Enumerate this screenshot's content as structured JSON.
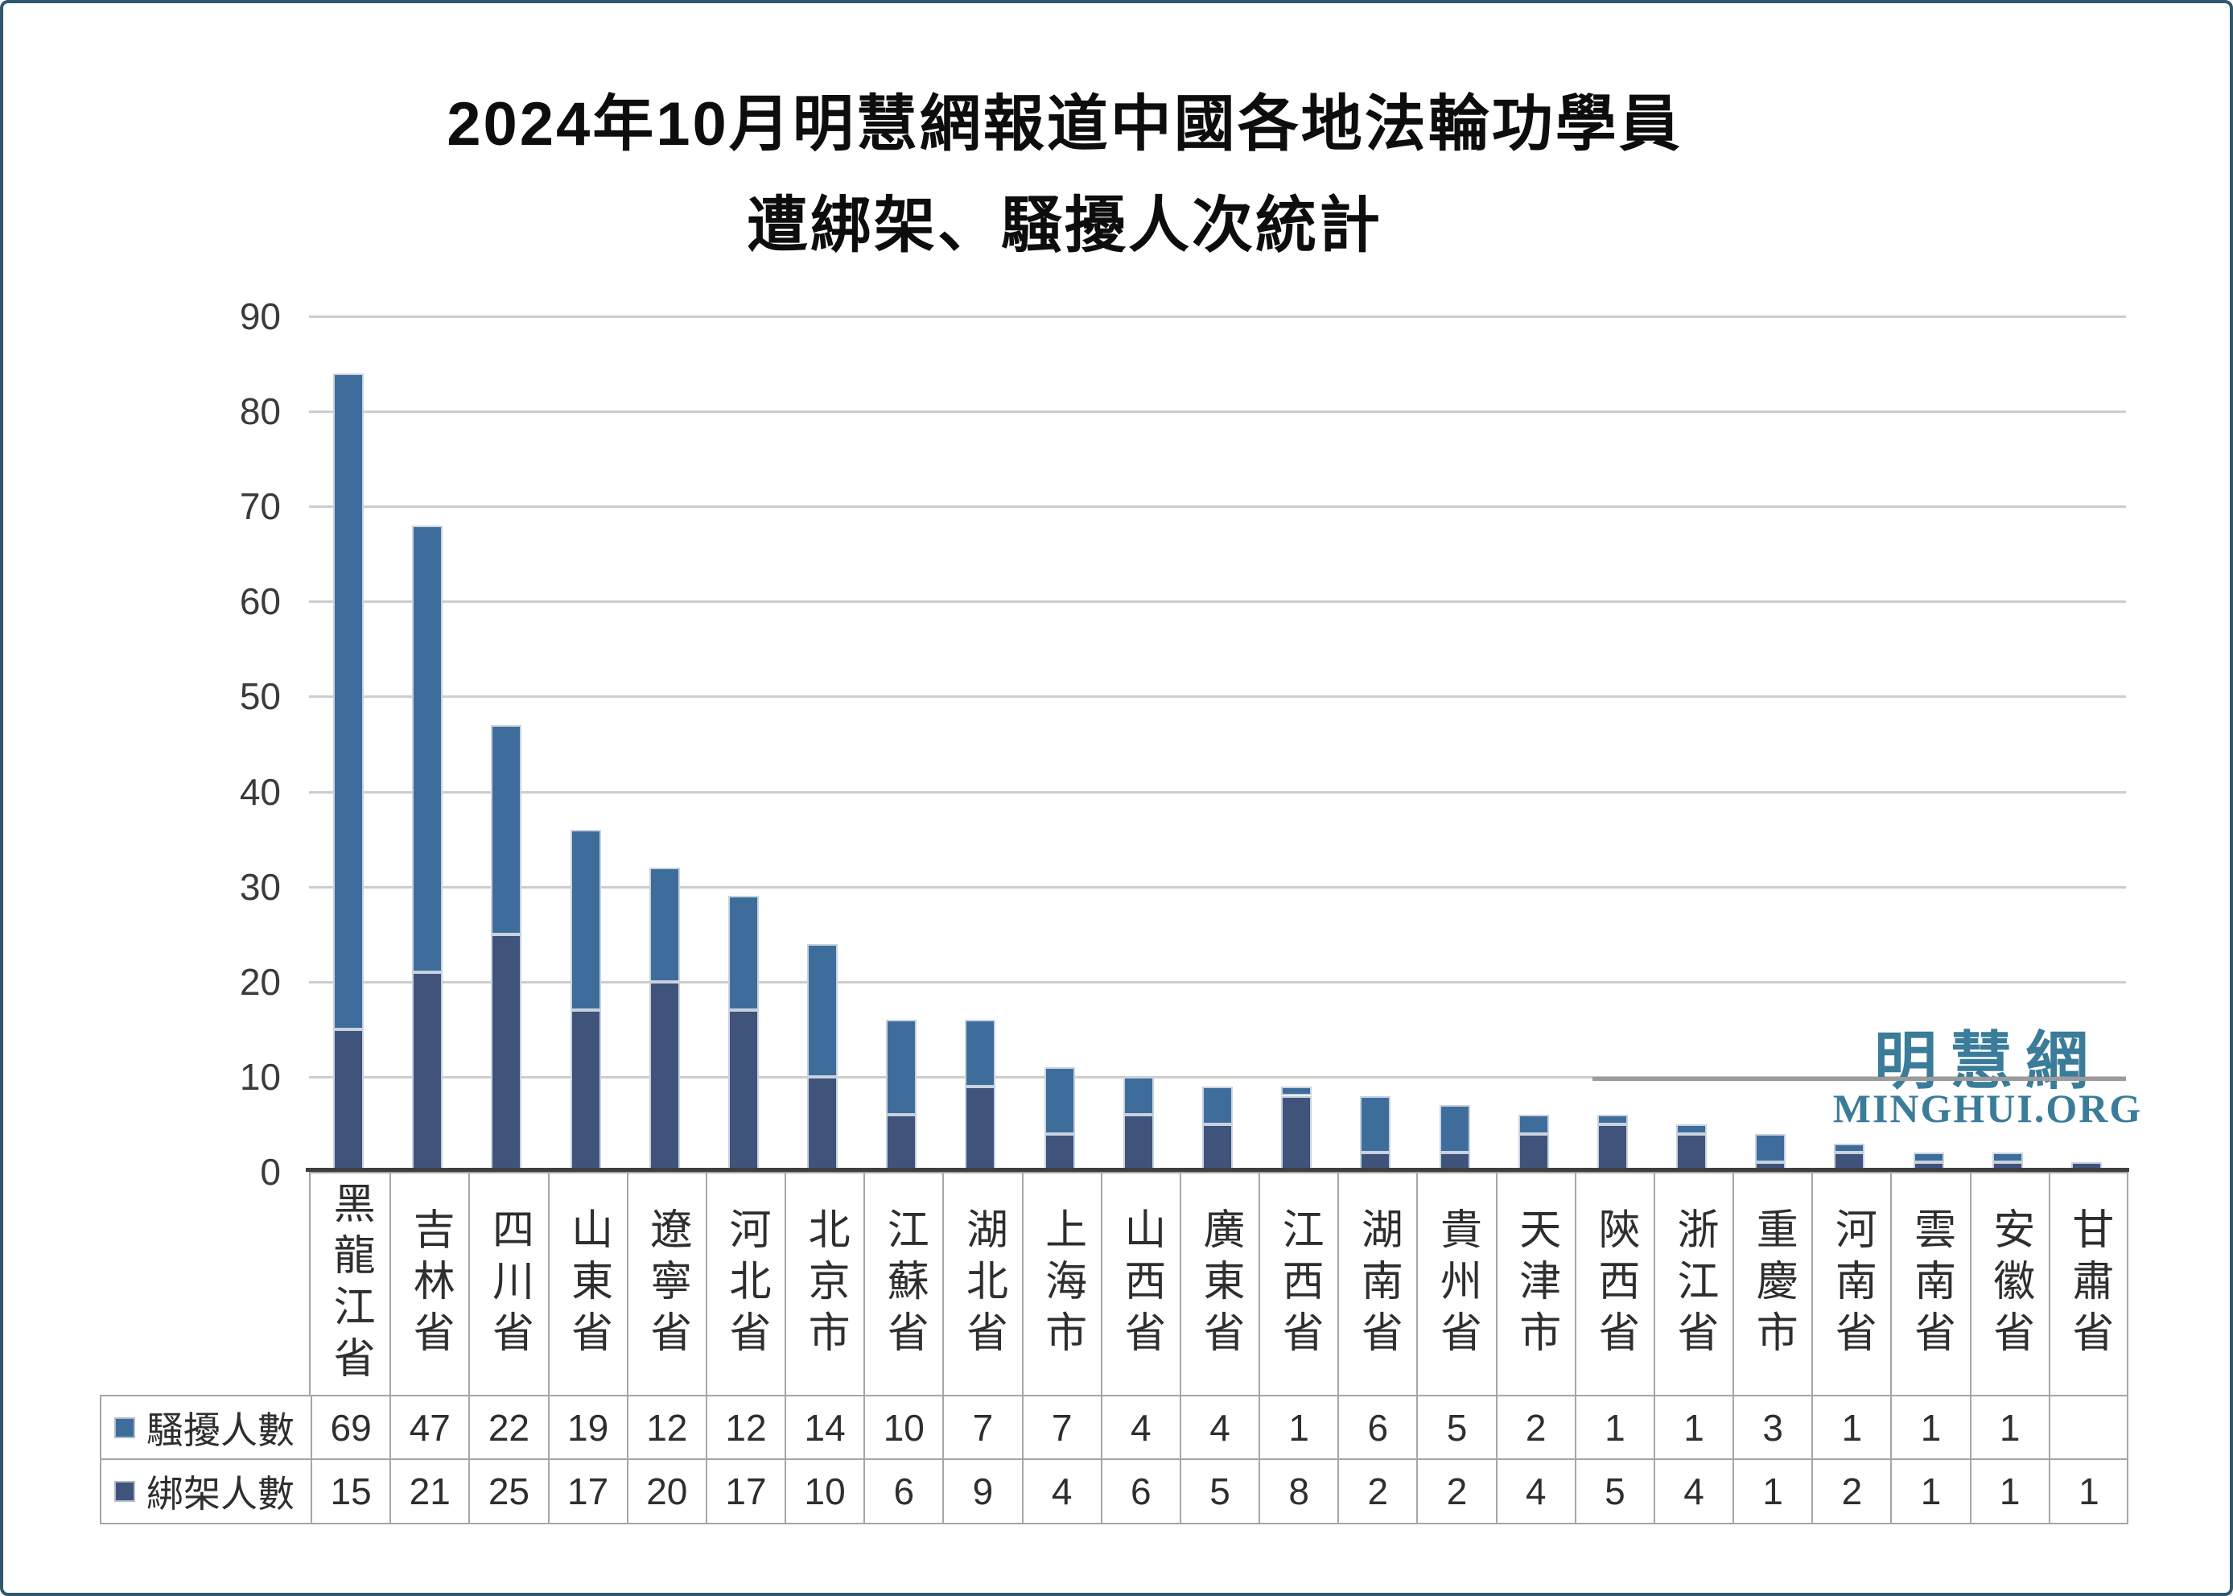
{
  "title": {
    "line1": "2024年10月明慧網報道中國各地法輪功學員",
    "line2": "遭綁架、騷擾人次統計"
  },
  "logo": {
    "cjk": "明慧網",
    "latin": "MINGHUI.ORG",
    "color": "#3a7c99"
  },
  "chart_data": {
    "type": "bar",
    "stacked": true,
    "title": "2024年10月明慧網報道中國各地法輪功學員遭綁架、騷擾人次統計",
    "xlabel": "",
    "ylabel": "",
    "ylim": [
      0,
      90
    ],
    "ytick_step": 10,
    "grid": true,
    "legend_position": "data-table-left",
    "data_table": true,
    "categories": [
      "黑龍江省",
      "吉林省",
      "四川省",
      "山東省",
      "遼寧省",
      "河北省",
      "北京市",
      "江蘇省",
      "湖北省",
      "上海市",
      "山西省",
      "廣東省",
      "江西省",
      "湖南省",
      "貴州省",
      "天津市",
      "陝西省",
      "浙江省",
      "重慶市",
      "河南省",
      "雲南省",
      "安徽省",
      "甘肅省"
    ],
    "series": [
      {
        "name": "騷擾人數",
        "stack_position": "top",
        "color": "#3f6d9b",
        "values": [
          69,
          47,
          22,
          19,
          12,
          12,
          14,
          10,
          7,
          7,
          4,
          4,
          1,
          6,
          5,
          2,
          1,
          1,
          3,
          1,
          1,
          1,
          null
        ]
      },
      {
        "name": "綁架人數",
        "stack_position": "bottom",
        "color": "#3f537b",
        "values": [
          15,
          21,
          25,
          17,
          20,
          17,
          10,
          6,
          9,
          4,
          6,
          5,
          8,
          2,
          2,
          4,
          5,
          4,
          1,
          2,
          1,
          1,
          1
        ]
      }
    ]
  }
}
